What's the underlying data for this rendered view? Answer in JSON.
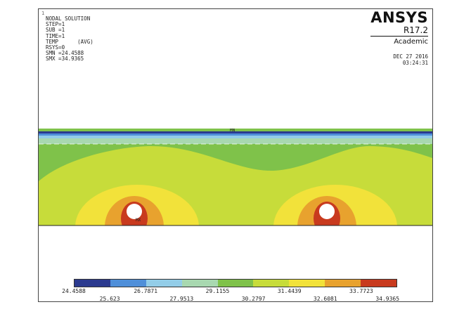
{
  "window": {
    "number": "1"
  },
  "info": {
    "lines": [
      "NODAL SOLUTION",
      "",
      "STEP=1",
      "SUB =1",
      "TIME=1",
      "TEMP      (AVG)",
      "RSYS=0",
      "SMN =24.4588",
      "SMX =34.9365"
    ]
  },
  "brand": {
    "name": "ANSYS",
    "release": "R17.2",
    "edition": "Academic"
  },
  "timestamp": {
    "date": "DEC 27 2016",
    "time": "03:24:31"
  },
  "markers": {
    "min": "MN",
    "max": "MX"
  },
  "legend": {
    "colors": [
      "#2b3a8f",
      "#4f8fd9",
      "#93cde8",
      "#a8d8b0",
      "#7fc24a",
      "#c7dc3a",
      "#f2e23a",
      "#e8a22e",
      "#c83a1e"
    ],
    "top_labels": [
      "24.4588",
      "26.7871",
      "29.1155",
      "31.4439",
      "33.7723"
    ],
    "bottom_labels": [
      "25.623",
      "27.9513",
      "30.2797",
      "32.6081",
      "34.9365"
    ]
  }
}
